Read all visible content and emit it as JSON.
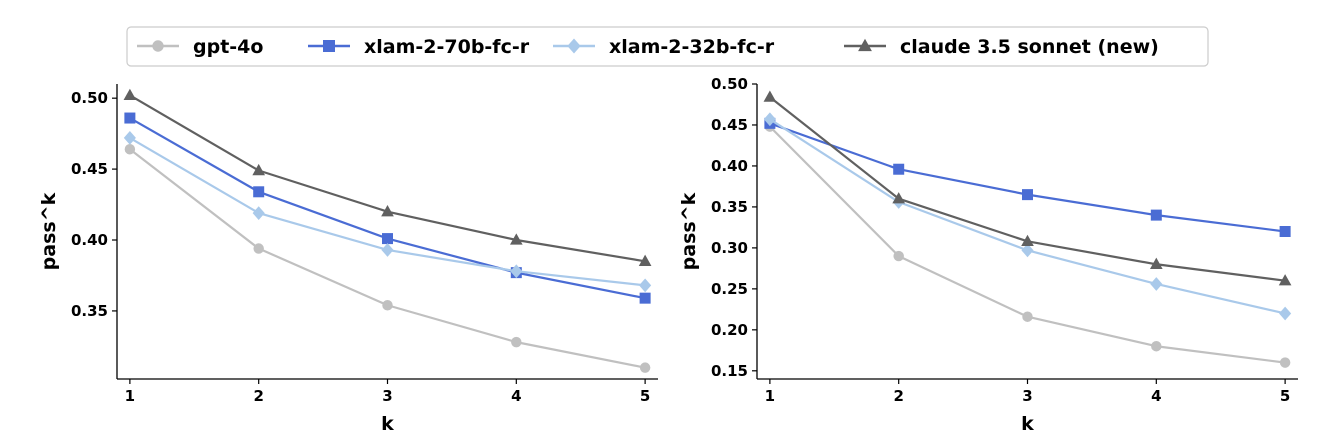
{
  "legend": {
    "placement": "top-center",
    "entries": [
      {
        "name": "gpt-4o",
        "color": "#c0c0c0",
        "marker": "circle"
      },
      {
        "name": "xlam-2-70b-fc-r",
        "color": "#4a6cd4",
        "marker": "square"
      },
      {
        "name": "xlam-2-32b-fc-r",
        "color": "#a9c9ea",
        "marker": "diamond"
      },
      {
        "name": "claude 3.5 sonnet (new)",
        "color": "#606060",
        "marker": "triangle"
      }
    ]
  },
  "chart_data": [
    {
      "type": "line",
      "xlabel": "k",
      "ylabel": "pass^k",
      "x": [
        1,
        2,
        3,
        4,
        5
      ],
      "xticks": [
        "1",
        "2",
        "3",
        "4",
        "5"
      ],
      "yticks": [
        "0.35",
        "0.40",
        "0.45",
        "0.50"
      ],
      "ylim": [
        0.302,
        0.51
      ],
      "grid": false,
      "series": [
        {
          "name": "gpt-4o",
          "values": [
            0.464,
            0.394,
            0.354,
            0.328,
            0.31
          ]
        },
        {
          "name": "xlam-2-70b-fc-r",
          "values": [
            0.486,
            0.434,
            0.401,
            0.377,
            0.359
          ]
        },
        {
          "name": "xlam-2-32b-fc-r",
          "values": [
            0.472,
            0.419,
            0.393,
            0.378,
            0.368
          ]
        },
        {
          "name": "claude 3.5 sonnet (new)",
          "values": [
            0.502,
            0.449,
            0.42,
            0.4,
            0.385
          ]
        }
      ]
    },
    {
      "type": "line",
      "xlabel": "k",
      "ylabel": "pass^k",
      "x": [
        1,
        2,
        3,
        4,
        5
      ],
      "xticks": [
        "1",
        "2",
        "3",
        "4",
        "5"
      ],
      "yticks": [
        "0.15",
        "0.20",
        "0.25",
        "0.30",
        "0.35",
        "0.40",
        "0.45",
        "0.50"
      ],
      "ylim": [
        0.14,
        0.5
      ],
      "grid": false,
      "series": [
        {
          "name": "gpt-4o",
          "values": [
            0.448,
            0.29,
            0.216,
            0.18,
            0.16
          ]
        },
        {
          "name": "xlam-2-70b-fc-r",
          "values": [
            0.452,
            0.396,
            0.365,
            0.34,
            0.32
          ]
        },
        {
          "name": "xlam-2-32b-fc-r",
          "values": [
            0.457,
            0.356,
            0.297,
            0.256,
            0.22
          ]
        },
        {
          "name": "claude 3.5 sonnet (new)",
          "values": [
            0.484,
            0.36,
            0.308,
            0.28,
            0.26
          ]
        }
      ]
    }
  ]
}
